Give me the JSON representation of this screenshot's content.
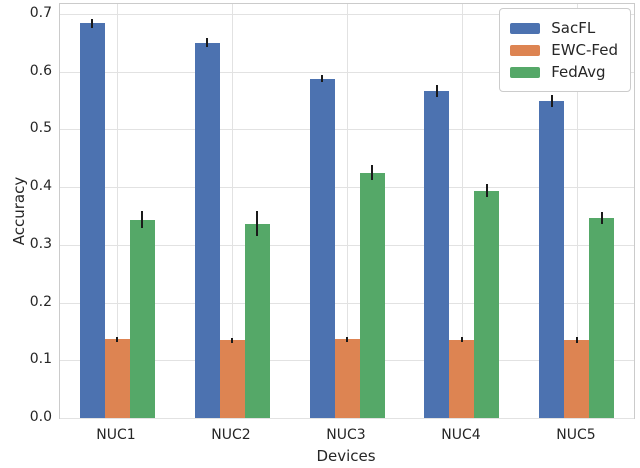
{
  "chart_data": {
    "type": "bar",
    "title": "",
    "xlabel": "Devices",
    "ylabel": "Accuracy",
    "categories": [
      "NUC1",
      "NUC2",
      "NUC3",
      "NUC4",
      "NUC5"
    ],
    "series": [
      {
        "name": "SacFL",
        "color": "#4C72B0",
        "values": [
          0.684,
          0.65,
          0.588,
          0.567,
          0.549
        ],
        "errors": [
          0.008,
          0.008,
          0.006,
          0.01,
          0.01
        ]
      },
      {
        "name": "EWC-Fed",
        "color": "#DD8452",
        "values": [
          0.137,
          0.135,
          0.137,
          0.136,
          0.135
        ],
        "errors": [
          0.004,
          0.004,
          0.004,
          0.004,
          0.005
        ]
      },
      {
        "name": "FedAvg",
        "color": "#55A868",
        "values": [
          0.344,
          0.337,
          0.425,
          0.394,
          0.347
        ],
        "errors": [
          0.015,
          0.022,
          0.013,
          0.011,
          0.01
        ]
      }
    ],
    "yticks": [
      0.0,
      0.1,
      0.2,
      0.3,
      0.4,
      0.5,
      0.6,
      0.7
    ],
    "ytick_labels": [
      "0.0",
      "0.1",
      "0.2",
      "0.3",
      "0.4",
      "0.5",
      "0.6",
      "0.7"
    ],
    "ylim": [
      0,
      0.7175
    ],
    "grid": true,
    "grid_color": "#e2e2e2",
    "errorbar_color": "#1a1a1a",
    "legend_position": "upper right"
  }
}
